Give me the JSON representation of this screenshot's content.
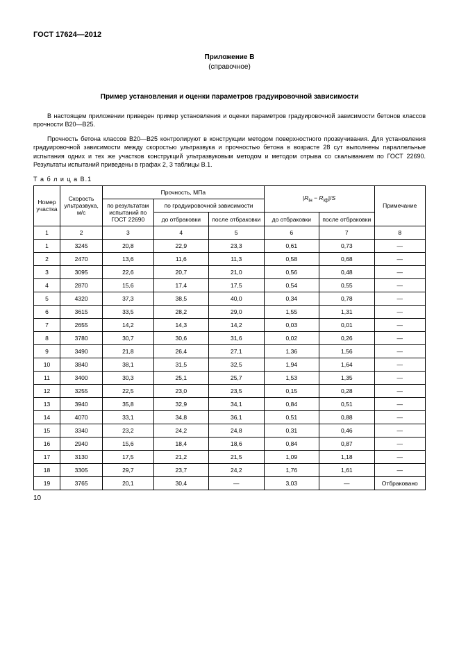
{
  "doc_id": "ГОСТ 17624—2012",
  "appendix_label": "Приложение В",
  "appendix_sub": "(справочное)",
  "title": "Пример установления и оценки параметров градуировочной зависимости",
  "para1": "В настоящем приложении приведен пример установления и оценки параметров градуировочной зависимости бетонов классов прочности В20—В25.",
  "para2": "Прочность бетона классов В20—В25 контролируют в конструкции методом поверхностного прозвучивания. Для установления градуировочной зависимости между скоростью ультразвука и прочностью бетона в возрасте 28 сут выполнены параллельные испытания одних и тех же участков конструкций ультразвуковым методом и методом отрыва со скалыванием по ГОСТ 22690. Результаты испытаний приведены в графах 2, 3 таблицы В.1.",
  "table_caption": "Т а б л и ц а  В.1",
  "headers": {
    "col1": "Номер участка",
    "col2": "Скорость ультразвука, м/с",
    "strength_group": "Прочность, МПа",
    "col3": "по результатам испытаний по ГОСТ 22690",
    "grad_group": "по градуировочной зависимости",
    "col4": "до отбраковки",
    "col5": "после отбраковки",
    "formula_html": "|<i>R</i><sub>iн</sub> − <i>R</i><sub>iф</sub>|/<i>S</i>",
    "col6": "до отбраковки",
    "col7": "после отбраковки",
    "col8": "Примечание"
  },
  "colnums": [
    "1",
    "2",
    "3",
    "4",
    "5",
    "6",
    "7",
    "8"
  ],
  "rows": [
    {
      "n": "1",
      "speed": "3245",
      "gost": "20,8",
      "before": "22,9",
      "after": "23,3",
      "rb": "0,61",
      "ra": "0,73",
      "note": "—"
    },
    {
      "n": "2",
      "speed": "2470",
      "gost": "13,6",
      "before": "11,6",
      "after": "11,3",
      "rb": "0,58",
      "ra": "0,68",
      "note": "—"
    },
    {
      "n": "3",
      "speed": "3095",
      "gost": "22,6",
      "before": "20,7",
      "after": "21,0",
      "rb": "0,56",
      "ra": "0,48",
      "note": "—"
    },
    {
      "n": "4",
      "speed": "2870",
      "gost": "15,6",
      "before": "17,4",
      "after": "17,5",
      "rb": "0,54",
      "ra": "0,55",
      "note": "—"
    },
    {
      "n": "5",
      "speed": "4320",
      "gost": "37,3",
      "before": "38,5",
      "after": "40,0",
      "rb": "0,34",
      "ra": "0,78",
      "note": "—"
    },
    {
      "n": "6",
      "speed": "3615",
      "gost": "33,5",
      "before": "28,2",
      "after": "29,0",
      "rb": "1,55",
      "ra": "1,31",
      "note": "—"
    },
    {
      "n": "7",
      "speed": "2655",
      "gost": "14,2",
      "before": "14,3",
      "after": "14,2",
      "rb": "0,03",
      "ra": "0,01",
      "note": "—"
    },
    {
      "n": "8",
      "speed": "3780",
      "gost": "30,7",
      "before": "30,6",
      "after": "31,6",
      "rb": "0,02",
      "ra": "0,26",
      "note": "—"
    },
    {
      "n": "9",
      "speed": "3490",
      "gost": "21,8",
      "before": "26,4",
      "after": "27,1",
      "rb": "1,36",
      "ra": "1,56",
      "note": "—"
    },
    {
      "n": "10",
      "speed": "3840",
      "gost": "38,1",
      "before": "31,5",
      "after": "32,5",
      "rb": "1,94",
      "ra": "1,64",
      "note": "—"
    },
    {
      "n": "11",
      "speed": "3400",
      "gost": "30,3",
      "before": "25,1",
      "after": "25,7",
      "rb": "1,53",
      "ra": "1,35",
      "note": "—"
    },
    {
      "n": "12",
      "speed": "3255",
      "gost": "22,5",
      "before": "23,0",
      "after": "23,5",
      "rb": "0,15",
      "ra": "0,28",
      "note": "—"
    },
    {
      "n": "13",
      "speed": "3940",
      "gost": "35,8",
      "before": "32,9",
      "after": "34,1",
      "rb": "0,84",
      "ra": "0,51",
      "note": "—"
    },
    {
      "n": "14",
      "speed": "4070",
      "gost": "33,1",
      "before": "34,8",
      "after": "36,1",
      "rb": "0,51",
      "ra": "0,88",
      "note": "—"
    },
    {
      "n": "15",
      "speed": "3340",
      "gost": "23,2",
      "before": "24,2",
      "after": "24,8",
      "rb": "0,31",
      "ra": "0,46",
      "note": "—"
    },
    {
      "n": "16",
      "speed": "2940",
      "gost": "15,6",
      "before": "18,4",
      "after": "18,6",
      "rb": "0,84",
      "ra": "0,87",
      "note": "—"
    },
    {
      "n": "17",
      "speed": "3130",
      "gost": "17,5",
      "before": "21,2",
      "after": "21,5",
      "rb": "1,09",
      "ra": "1,18",
      "note": "—"
    },
    {
      "n": "18",
      "speed": "3305",
      "gost": "29,7",
      "before": "23,7",
      "after": "24,2",
      "rb": "1,76",
      "ra": "1,61",
      "note": "—"
    },
    {
      "n": "19",
      "speed": "3765",
      "gost": "20,1",
      "before": "30,4",
      "after": "—",
      "rb": "3,03",
      "ra": "—",
      "note": "Отбраковано"
    }
  ],
  "page_num": "10"
}
